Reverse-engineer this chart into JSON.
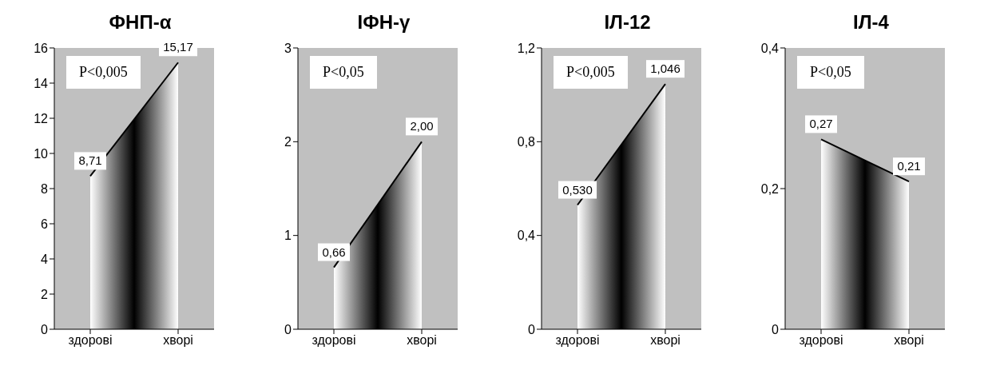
{
  "chart_data": [
    {
      "type": "area",
      "title": "ФНП-α",
      "categories": [
        "здорові",
        "хворі"
      ],
      "values": [
        8.71,
        15.17
      ],
      "value_labels": [
        "8,71",
        "15,17"
      ],
      "color": "#000000",
      "ylim": [
        0,
        16
      ],
      "yticks": [
        0,
        2,
        4,
        6,
        8,
        10,
        12,
        14,
        16
      ],
      "annotations": [
        "P<0,005"
      ]
    },
    {
      "type": "area",
      "title": "ІФН-γ",
      "categories": [
        "здорові",
        "хворі"
      ],
      "values": [
        0.66,
        2.0
      ],
      "value_labels": [
        "0,66",
        "2,00"
      ],
      "color": "#000000",
      "ylim": [
        0,
        3
      ],
      "yticks": [
        0,
        1,
        2,
        3
      ],
      "annotations": [
        "P<0,05"
      ]
    },
    {
      "type": "area",
      "title": "ІЛ-12",
      "categories": [
        "здорові",
        "хворі"
      ],
      "values": [
        0.53,
        1.046
      ],
      "value_labels": [
        "0,530",
        "1,046"
      ],
      "color": "#000000",
      "ylim": [
        0,
        1.2
      ],
      "yticks": [
        0,
        {
          "value": 0.4,
          "label": "0,4"
        },
        {
          "value": 0.8,
          "label": "0,8"
        },
        {
          "value": 1.2,
          "label": "1,2"
        }
      ],
      "annotations": [
        "P<0,005"
      ]
    },
    {
      "type": "area",
      "title": "ІЛ-4",
      "categories": [
        "здорові",
        "хворі"
      ],
      "values": [
        0.27,
        0.21
      ],
      "value_labels": [
        "0,27",
        "0,21"
      ],
      "color": "#000000",
      "ylim": [
        0,
        0.4
      ],
      "yticks": [
        0,
        {
          "value": 0.2,
          "label": "0,2"
        },
        {
          "value": 0.4,
          "label": "0,4"
        }
      ],
      "annotations": [
        "P<0,05"
      ]
    }
  ]
}
